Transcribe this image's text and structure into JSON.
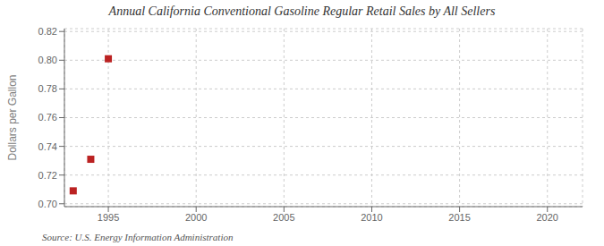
{
  "chart_data": {
    "type": "scatter",
    "title": "Annual California Conventional Gasoline Regular Retail Sales by All Sellers",
    "ylabel": "Dollars per Gallon",
    "annotations": [
      "Source: U.S. Energy Information Administration"
    ],
    "x": [
      1993,
      1994,
      1995
    ],
    "values": [
      0.709,
      0.731,
      0.801
    ],
    "color": "#bb2222",
    "marker": "square",
    "xlim": [
      1992.5,
      2022
    ],
    "ylim": [
      0.698,
      0.822
    ],
    "xticks": [
      1995,
      2000,
      2005,
      2010,
      2015,
      2020
    ],
    "yticks": [
      {
        "value": 0.7,
        "label": "0.70"
      },
      0.72,
      0.74,
      0.76,
      0.78,
      {
        "value": 0.8,
        "label": "0.80"
      },
      0.82
    ],
    "grid": true
  }
}
